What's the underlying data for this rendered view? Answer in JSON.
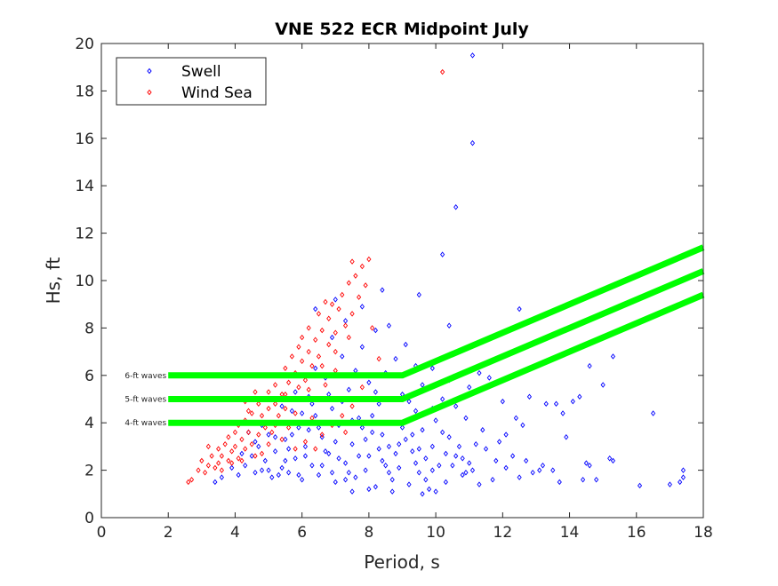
{
  "chart_data": {
    "type": "scatter",
    "title": "VNE 522 ECR Midpoint July",
    "xlabel": "Period, s",
    "ylabel": "Hs, ft",
    "xlim": [
      0,
      18
    ],
    "ylim": [
      0,
      20
    ],
    "xticks": [
      "0",
      "2",
      "4",
      "6",
      "8",
      "10",
      "12",
      "14",
      "16",
      "18"
    ],
    "yticks": [
      "0",
      "2",
      "4",
      "6",
      "8",
      "10",
      "12",
      "14",
      "16",
      "18",
      "20"
    ],
    "grid": false,
    "legend": {
      "placement": "top-left",
      "entries": [
        "Swell",
        "Wind Sea"
      ]
    },
    "series": [
      {
        "name": "Swell",
        "color": "#0000ff",
        "marker": "diamond",
        "points": [
          [
            11.1,
            19.5
          ],
          [
            11.1,
            15.8
          ],
          [
            10.6,
            13.1
          ],
          [
            10.2,
            11.1
          ],
          [
            12.5,
            8.8
          ],
          [
            9.5,
            9.4
          ],
          [
            15.3,
            6.8
          ],
          [
            14.6,
            6.4
          ],
          [
            16.5,
            4.4
          ],
          [
            17.4,
            2.0
          ],
          [
            17.4,
            1.7
          ],
          [
            17.3,
            1.5
          ],
          [
            17.0,
            1.4
          ],
          [
            16.1,
            1.35
          ],
          [
            14.8,
            1.6
          ],
          [
            15.3,
            2.4
          ],
          [
            15.2,
            2.5
          ],
          [
            13.9,
            3.4
          ],
          [
            14.3,
            5.1
          ],
          [
            15.0,
            5.6
          ],
          [
            14.1,
            4.9
          ],
          [
            13.3,
            4.8
          ],
          [
            12.8,
            5.1
          ],
          [
            13.6,
            4.8
          ],
          [
            13.8,
            4.4
          ],
          [
            12.4,
            4.2
          ],
          [
            11.6,
            5.9
          ],
          [
            11.3,
            6.1
          ],
          [
            12.1,
            3.5
          ],
          [
            12.6,
            3.9
          ],
          [
            13.2,
            2.2
          ],
          [
            14.5,
            2.3
          ],
          [
            14.6,
            2.2
          ],
          [
            14.4,
            1.6
          ],
          [
            13.7,
            1.5
          ],
          [
            13.5,
            2.0
          ],
          [
            12.9,
            1.9
          ],
          [
            12.5,
            1.7
          ],
          [
            12.1,
            2.1
          ],
          [
            11.8,
            2.4
          ],
          [
            11.5,
            2.9
          ],
          [
            11.2,
            3.1
          ],
          [
            11.0,
            2.3
          ],
          [
            10.8,
            1.8
          ],
          [
            10.6,
            2.6
          ],
          [
            10.4,
            3.4
          ],
          [
            10.3,
            1.5
          ],
          [
            10.1,
            2.2
          ],
          [
            10.0,
            4.1
          ],
          [
            9.9,
            3.0
          ],
          [
            9.8,
            1.2
          ],
          [
            9.7,
            2.5
          ],
          [
            9.6,
            3.7
          ],
          [
            9.5,
            1.9
          ],
          [
            9.4,
            4.5
          ],
          [
            9.3,
            2.8
          ],
          [
            9.2,
            1.4
          ],
          [
            9.1,
            3.3
          ],
          [
            9.0,
            5.2
          ],
          [
            8.9,
            2.1
          ],
          [
            8.8,
            4.0
          ],
          [
            8.7,
            1.6
          ],
          [
            8.6,
            3.0
          ],
          [
            8.5,
            6.1
          ],
          [
            8.4,
            2.4
          ],
          [
            8.3,
            4.8
          ],
          [
            8.2,
            1.3
          ],
          [
            8.1,
            3.6
          ],
          [
            8.0,
            5.7
          ],
          [
            7.9,
            2.0
          ],
          [
            7.8,
            7.2
          ],
          [
            7.7,
            4.2
          ],
          [
            7.6,
            1.7
          ],
          [
            7.5,
            3.1
          ],
          [
            7.4,
            5.4
          ],
          [
            7.3,
            2.3
          ],
          [
            7.2,
            6.8
          ],
          [
            7.1,
            3.9
          ],
          [
            7.0,
            1.5
          ],
          [
            6.9,
            4.6
          ],
          [
            6.8,
            2.7
          ],
          [
            6.7,
            5.9
          ],
          [
            6.6,
            3.4
          ],
          [
            6.5,
            1.8
          ],
          [
            6.4,
            4.3
          ],
          [
            6.3,
            2.2
          ],
          [
            6.2,
            5.1
          ],
          [
            6.1,
            3.0
          ],
          [
            6.0,
            1.6
          ],
          [
            5.9,
            3.8
          ],
          [
            5.8,
            2.5
          ],
          [
            5.7,
            4.5
          ],
          [
            5.6,
            1.9
          ],
          [
            5.5,
            3.3
          ],
          [
            5.4,
            2.1
          ],
          [
            5.3,
            4.0
          ],
          [
            5.2,
            2.8
          ],
          [
            5.1,
            1.7
          ],
          [
            5.0,
            3.5
          ],
          [
            4.9,
            2.4
          ],
          [
            4.8,
            2.0
          ],
          [
            4.7,
            3.0
          ],
          [
            4.6,
            1.9
          ],
          [
            4.5,
            2.6
          ],
          [
            4.3,
            2.2
          ],
          [
            4.1,
            1.8
          ],
          [
            3.9,
            2.1
          ],
          [
            3.6,
            1.7
          ],
          [
            3.4,
            1.5
          ],
          [
            6.9,
            7.6
          ],
          [
            7.3,
            8.3
          ],
          [
            7.8,
            8.9
          ],
          [
            8.2,
            7.9
          ],
          [
            8.6,
            8.1
          ],
          [
            9.1,
            7.3
          ],
          [
            8.8,
            6.7
          ],
          [
            9.4,
            6.4
          ],
          [
            9.6,
            5.6
          ],
          [
            10.2,
            5.0
          ],
          [
            10.6,
            4.7
          ],
          [
            10.9,
            4.2
          ],
          [
            11.4,
            3.7
          ],
          [
            11.9,
            3.2
          ],
          [
            12.3,
            2.6
          ],
          [
            12.7,
            2.4
          ],
          [
            13.1,
            2.0
          ],
          [
            11.7,
            1.6
          ],
          [
            11.3,
            1.4
          ],
          [
            10.9,
            1.9
          ],
          [
            10.7,
            3.0
          ],
          [
            10.5,
            2.2
          ],
          [
            10.2,
            3.6
          ],
          [
            9.9,
            4.6
          ],
          [
            9.7,
            1.6
          ],
          [
            9.4,
            2.3
          ],
          [
            9.2,
            4.9
          ],
          [
            9.0,
            3.8
          ],
          [
            8.8,
            2.7
          ],
          [
            8.6,
            1.9
          ],
          [
            8.4,
            3.5
          ],
          [
            8.2,
            5.3
          ],
          [
            8.0,
            2.6
          ],
          [
            7.8,
            3.8
          ],
          [
            7.6,
            6.2
          ],
          [
            7.4,
            1.9
          ],
          [
            7.2,
            4.9
          ],
          [
            7.0,
            3.2
          ],
          [
            6.8,
            5.2
          ],
          [
            6.6,
            2.2
          ],
          [
            6.4,
            6.3
          ],
          [
            6.2,
            3.7
          ],
          [
            6.0,
            4.4
          ],
          [
            5.8,
            5.3
          ],
          [
            5.6,
            2.9
          ],
          [
            5.4,
            4.7
          ],
          [
            5.2,
            3.4
          ],
          [
            5.0,
            2.0
          ],
          [
            4.8,
            3.9
          ],
          [
            4.6,
            3.2
          ],
          [
            4.4,
            3.6
          ],
          [
            4.2,
            2.7
          ],
          [
            10.3,
            2.7
          ],
          [
            10.8,
            2.5
          ],
          [
            11.1,
            2.0
          ],
          [
            9.9,
            2.0
          ],
          [
            9.5,
            2.9
          ],
          [
            9.3,
            3.5
          ],
          [
            8.9,
            3.1
          ],
          [
            8.5,
            2.2
          ],
          [
            8.3,
            2.9
          ],
          [
            8.1,
            4.3
          ],
          [
            7.9,
            3.3
          ],
          [
            7.7,
            2.6
          ],
          [
            7.5,
            4.1
          ],
          [
            7.3,
            1.6
          ],
          [
            7.1,
            2.5
          ],
          [
            6.9,
            1.9
          ],
          [
            6.7,
            2.8
          ],
          [
            6.5,
            3.8
          ],
          [
            6.3,
            4.8
          ],
          [
            6.1,
            2.6
          ],
          [
            5.9,
            1.8
          ],
          [
            5.7,
            3.5
          ],
          [
            5.5,
            2.4
          ],
          [
            5.3,
            1.8
          ],
          [
            10.0,
            1.1
          ],
          [
            9.6,
            1.0
          ],
          [
            8.7,
            1.1
          ],
          [
            8.0,
            1.2
          ],
          [
            7.5,
            1.1
          ],
          [
            9.9,
            6.3
          ],
          [
            10.4,
            5.8
          ],
          [
            11.0,
            5.5
          ],
          [
            12.0,
            4.9
          ],
          [
            8.4,
            9.6
          ],
          [
            7.0,
            9.2
          ],
          [
            6.4,
            8.8
          ],
          [
            10.4,
            8.1
          ]
        ]
      },
      {
        "name": "Wind Sea",
        "color": "#ff0000",
        "marker": "diamond",
        "points": [
          [
            2.6,
            1.5
          ],
          [
            2.7,
            1.6
          ],
          [
            2.9,
            2.0
          ],
          [
            3.0,
            2.4
          ],
          [
            3.1,
            1.9
          ],
          [
            3.2,
            2.2
          ],
          [
            3.3,
            2.6
          ],
          [
            3.4,
            2.1
          ],
          [
            3.5,
            2.9
          ],
          [
            3.5,
            2.3
          ],
          [
            3.6,
            2.6
          ],
          [
            3.7,
            3.1
          ],
          [
            3.8,
            2.4
          ],
          [
            3.8,
            3.4
          ],
          [
            3.9,
            2.8
          ],
          [
            4.0,
            3.6
          ],
          [
            4.0,
            3.0
          ],
          [
            4.1,
            2.5
          ],
          [
            4.1,
            3.9
          ],
          [
            4.2,
            3.3
          ],
          [
            4.3,
            4.1
          ],
          [
            4.3,
            2.9
          ],
          [
            4.4,
            3.6
          ],
          [
            4.5,
            4.4
          ],
          [
            4.5,
            3.1
          ],
          [
            4.6,
            4.0
          ],
          [
            4.7,
            4.8
          ],
          [
            4.7,
            3.5
          ],
          [
            4.8,
            4.3
          ],
          [
            4.9,
            5.0
          ],
          [
            4.9,
            3.8
          ],
          [
            5.0,
            4.6
          ],
          [
            5.0,
            5.3
          ],
          [
            5.1,
            4.0
          ],
          [
            5.2,
            5.6
          ],
          [
            5.2,
            4.8
          ],
          [
            5.3,
            6.0
          ],
          [
            5.3,
            4.3
          ],
          [
            5.4,
            5.2
          ],
          [
            5.5,
            6.3
          ],
          [
            5.5,
            4.6
          ],
          [
            5.6,
            5.7
          ],
          [
            5.7,
            6.8
          ],
          [
            5.7,
            5.0
          ],
          [
            5.8,
            6.1
          ],
          [
            5.9,
            7.2
          ],
          [
            5.9,
            5.5
          ],
          [
            6.0,
            6.6
          ],
          [
            6.0,
            7.6
          ],
          [
            6.1,
            5.8
          ],
          [
            6.2,
            7.0
          ],
          [
            6.2,
            8.0
          ],
          [
            6.3,
            6.4
          ],
          [
            6.4,
            7.5
          ],
          [
            6.5,
            8.6
          ],
          [
            6.5,
            6.8
          ],
          [
            6.6,
            7.9
          ],
          [
            6.7,
            9.1
          ],
          [
            6.8,
            7.3
          ],
          [
            6.8,
            8.4
          ],
          [
            6.9,
            9.0
          ],
          [
            7.0,
            7.8
          ],
          [
            7.1,
            8.8
          ],
          [
            7.2,
            9.4
          ],
          [
            7.3,
            8.1
          ],
          [
            7.4,
            9.9
          ],
          [
            7.5,
            8.6
          ],
          [
            7.6,
            10.2
          ],
          [
            7.7,
            9.3
          ],
          [
            7.8,
            10.6
          ],
          [
            7.9,
            9.8
          ],
          [
            8.0,
            10.9
          ],
          [
            7.5,
            10.8
          ],
          [
            8.1,
            8.0
          ],
          [
            4.3,
            4.9
          ],
          [
            3.2,
            3.0
          ],
          [
            5.4,
            3.3
          ],
          [
            6.1,
            3.2
          ],
          [
            6.6,
            3.5
          ],
          [
            7.2,
            4.3
          ],
          [
            5.8,
            2.9
          ],
          [
            4.8,
            2.7
          ],
          [
            6.9,
            3.9
          ],
          [
            7.5,
            4.7
          ],
          [
            5.1,
            3.6
          ],
          [
            6.3,
            4.2
          ],
          [
            4.6,
            5.3
          ],
          [
            6.0,
            5.0
          ],
          [
            6.7,
            5.6
          ],
          [
            7.0,
            6.2
          ],
          [
            10.2,
            18.8
          ],
          [
            7.8,
            5.5
          ],
          [
            8.3,
            6.7
          ],
          [
            6.4,
            2.9
          ],
          [
            5.6,
            3.8
          ],
          [
            7.3,
            3.6
          ],
          [
            3.6,
            2.0
          ],
          [
            3.9,
            2.3
          ],
          [
            4.2,
            2.4
          ],
          [
            4.4,
            4.5
          ],
          [
            4.6,
            2.6
          ],
          [
            5.0,
            3.1
          ],
          [
            5.2,
            3.9
          ],
          [
            5.5,
            5.2
          ],
          [
            5.8,
            4.4
          ],
          [
            6.2,
            5.4
          ],
          [
            6.6,
            6.4
          ],
          [
            7.0,
            7.0
          ],
          [
            7.4,
            7.6
          ]
        ]
      }
    ],
    "threshold_lines": [
      {
        "label": "6-ft waves",
        "color": "#00ff00",
        "points": [
          [
            2,
            6
          ],
          [
            9,
            6
          ],
          [
            18,
            11.4
          ]
        ]
      },
      {
        "label": "5-ft waves",
        "color": "#00ff00",
        "points": [
          [
            2,
            5
          ],
          [
            9,
            5
          ],
          [
            18,
            10.4
          ]
        ]
      },
      {
        "label": "4-ft waves",
        "color": "#00ff00",
        "points": [
          [
            2,
            4
          ],
          [
            9,
            4
          ],
          [
            18,
            9.4
          ]
        ]
      }
    ]
  }
}
